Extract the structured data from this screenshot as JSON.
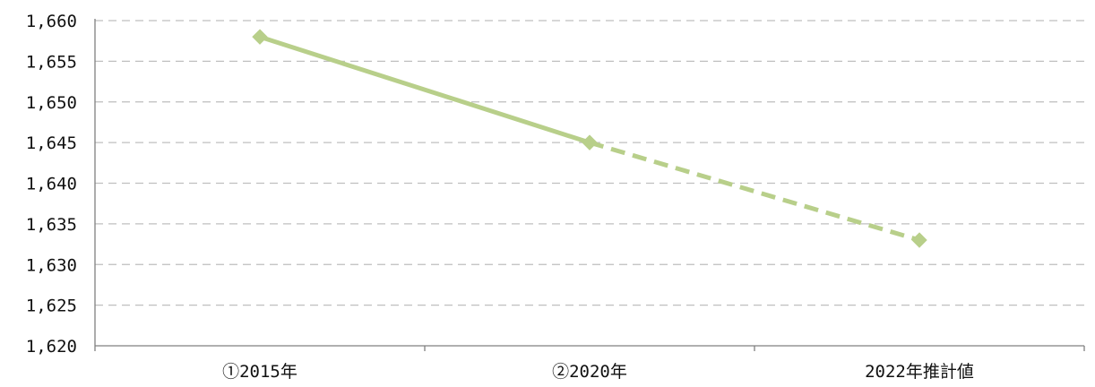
{
  "chart_data": {
    "type": "line",
    "categories": [
      "①2015年",
      "②2020年",
      "2022年推計値"
    ],
    "series": [
      {
        "values": [
          1658,
          1645,
          1633
        ],
        "segment_styles": [
          "solid",
          "dashed"
        ],
        "color": "#b8cf8a",
        "marker": "diamond"
      }
    ],
    "ylim": [
      1620,
      1660
    ],
    "yticks": [
      1620,
      1625,
      1630,
      1635,
      1640,
      1645,
      1650,
      1655,
      1660
    ],
    "ytick_labels": [
      "1,620",
      "1,625",
      "1,630",
      "1,635",
      "1,640",
      "1,645",
      "1,650",
      "1,655",
      "1,660"
    ],
    "grid": true,
    "grid_style": "dashed",
    "grid_color": "#bfbfbf",
    "axis_color": "#808080",
    "legend": "none"
  }
}
